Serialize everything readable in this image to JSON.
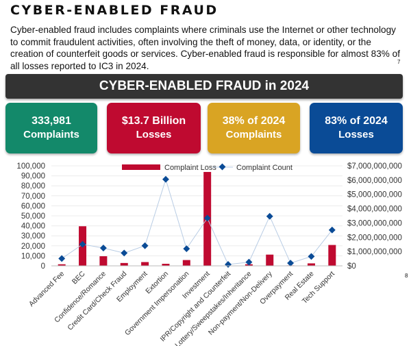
{
  "page": {
    "title": "CYBER-ENABLED FRAUD",
    "paragraph": "Cyber-enabled fraud includes complaints where criminals use the Internet or other technology to commit fraudulent activities, often involving the theft of money, data, or identity, or the creation of counterfeit goods or services. Cyber-enabled fraud is responsible for almost 83% of all losses reported to IC3 in 2024.",
    "footnote_7": "7",
    "footnote_8": "8",
    "banner": "CYBER-ENABLED FRAUD in 2024"
  },
  "stats": [
    {
      "line1": "333,981",
      "line2": "Complaints",
      "color": "#13896a"
    },
    {
      "line1": "$13.7 Billion",
      "line2": "Losses",
      "color": "#bf0a30"
    },
    {
      "line1": "38% of  2024",
      "line2": "Complaints",
      "color": "#d9a423"
    },
    {
      "line1": "83% of 2024",
      "line2": "Losses",
      "color": "#0a4b96"
    }
  ],
  "chart_data": {
    "type": "bar+line",
    "categories": [
      "Advanced Fee",
      "BEC",
      "Confidence/Romance",
      "Credit Card/Check Fraud",
      "Employment",
      "Extortion",
      "Government Impersonation",
      "Investment",
      "IPR/Copyright and Counterfeit",
      "Lottery/Sweepstakes/Inheritance",
      "Non-payment/Non-Delivery",
      "Overpayment",
      "Real Estate",
      "Tech Support"
    ],
    "series": [
      {
        "name": "Complaint Loss",
        "type": "bar",
        "axis": "right",
        "color": "#bf0a30",
        "values": [
          110000000,
          2770000000,
          672000000,
          199000000,
          264000000,
          143000000,
          405000000,
          6570000000,
          8000000,
          110000000,
          785000000,
          30000000,
          173000000,
          1460000000
        ]
      },
      {
        "name": "Complaint Count",
        "type": "line",
        "axis": "left",
        "color": "#0a4b96",
        "line_color": "#b8cce4",
        "values": [
          7300,
          21500,
          17800,
          12800,
          20100,
          86500,
          17100,
          47700,
          1400,
          3700,
          49500,
          2700,
          9400,
          35800
        ]
      }
    ],
    "left_axis": {
      "ylim": [
        0,
        100000
      ],
      "ticks": [
        "0",
        "10,000",
        "20,000",
        "30,000",
        "40,000",
        "50,000",
        "60,000",
        "70,000",
        "80,000",
        "90,000",
        "100,000"
      ]
    },
    "right_axis": {
      "ylim": [
        0,
        7000000000
      ],
      "ticks": [
        "$0",
        "$1,000,000,000",
        "$2,000,000,000",
        "$3,000,000,000",
        "$4,000,000,000",
        "$5,000,000,000",
        "$6,000,000,000",
        "$7,000,000,000"
      ]
    },
    "grid": true,
    "legend": "top-center"
  }
}
